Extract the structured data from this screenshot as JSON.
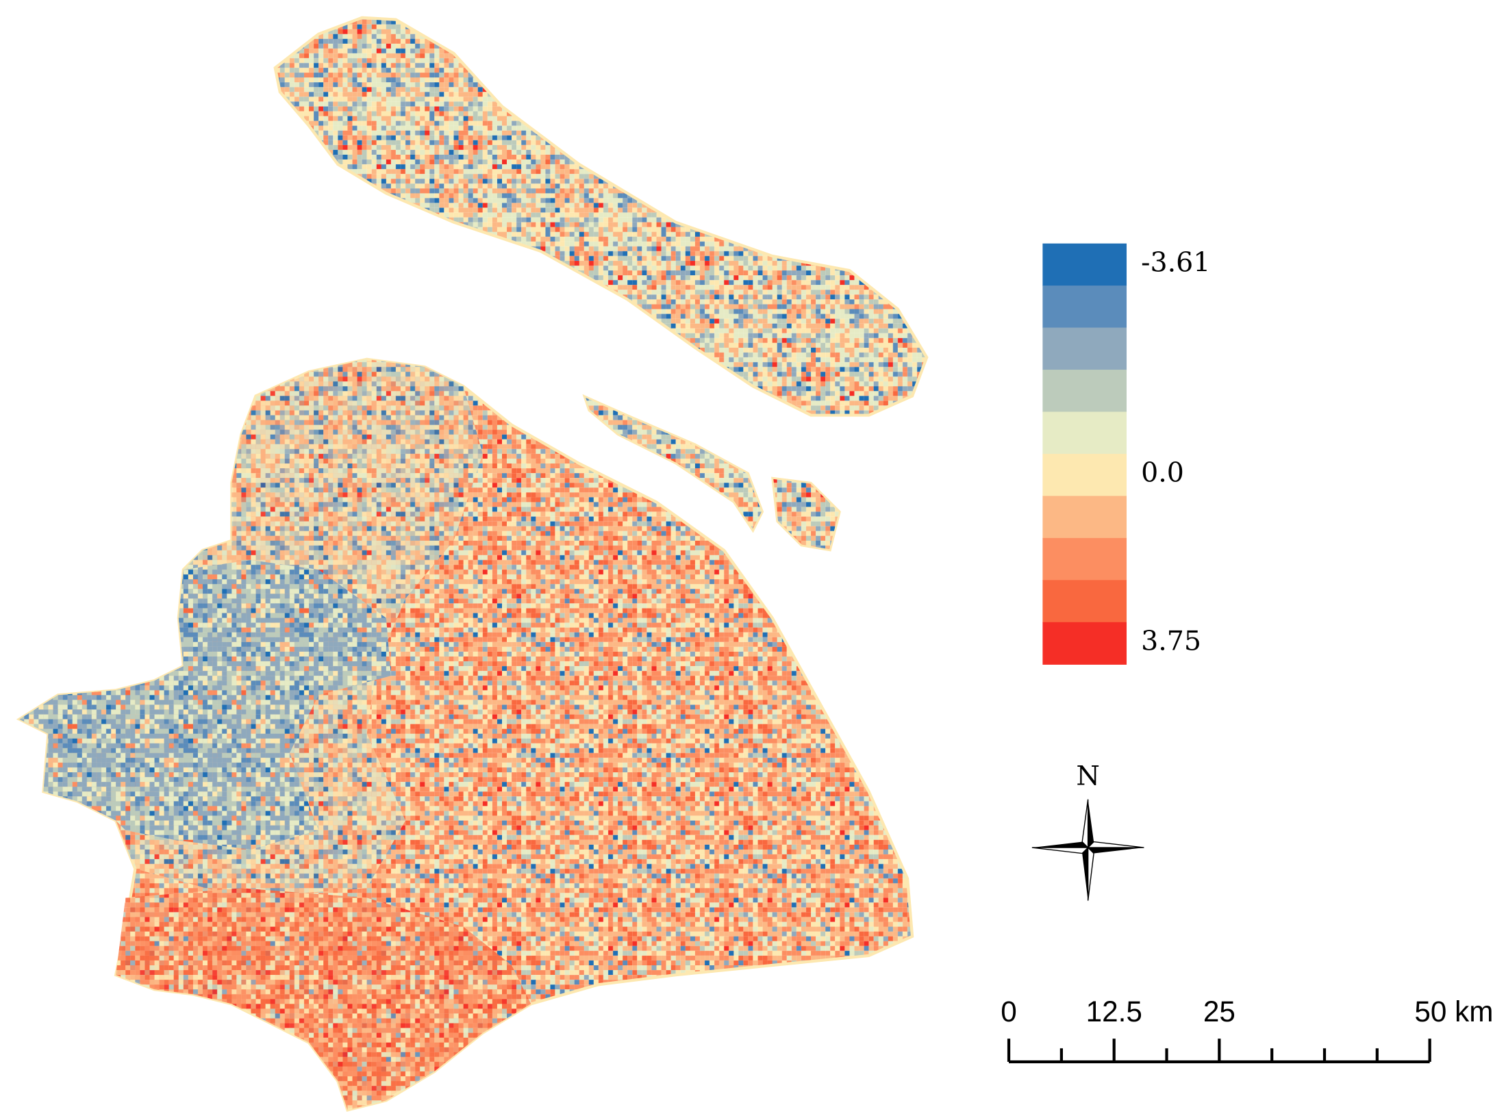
{
  "map": {
    "legend": {
      "colors": [
        "#1f6fb5",
        "#5b8cbb",
        "#8fa9bd",
        "#bccbbb",
        "#e6ebc5",
        "#fde8b0",
        "#fcb885",
        "#fc8e61",
        "#f9683f",
        "#f52e26"
      ],
      "labels": [
        {
          "class": 0,
          "text": "-3.61"
        },
        {
          "class": 5,
          "text": "0.0"
        },
        {
          "class": 9,
          "text": "3.75"
        }
      ]
    },
    "north": "N",
    "scale_bar": {
      "lim": [
        0,
        50
      ],
      "ticks": [
        0,
        12.5,
        25,
        {
          "value": 50,
          "label": "50 km"
        }
      ],
      "minor_ticks": [
        6.25,
        18.75,
        31.25,
        37.5,
        43.75
      ]
    }
  }
}
